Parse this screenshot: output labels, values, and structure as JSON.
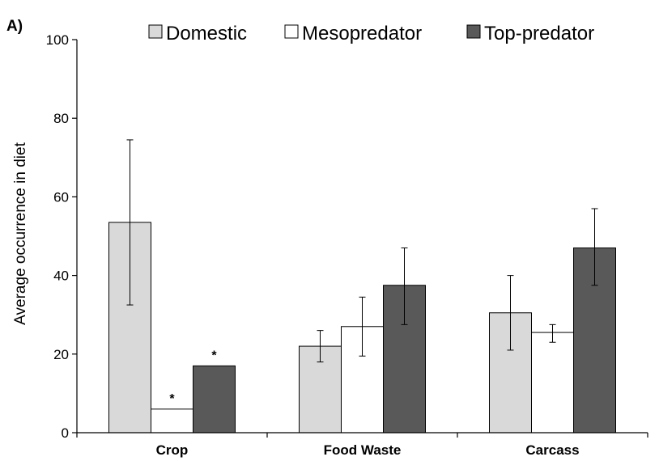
{
  "chart_data": {
    "type": "bar",
    "panel_label": "A)",
    "title": "",
    "xlabel": "",
    "ylabel": "Average occurrence in diet",
    "ylim": [
      0,
      100
    ],
    "yticks": [
      0,
      20,
      40,
      60,
      80,
      100
    ],
    "grid": false,
    "legend_position": "top",
    "categories": [
      "Crop",
      "Food Waste",
      "Carcass"
    ],
    "series": [
      {
        "name": "Domestic",
        "color": "#d9d9d9",
        "values": [
          53.5,
          22,
          30.5
        ],
        "error_low": [
          32.5,
          18,
          21
        ],
        "error_high": [
          74.5,
          26,
          40
        ],
        "annotations": [
          "",
          "",
          ""
        ]
      },
      {
        "name": "Mesopredator",
        "color": "#ffffff",
        "values": [
          6,
          27,
          25.5
        ],
        "error_low": [
          6,
          19.5,
          23
        ],
        "error_high": [
          6,
          34.5,
          27.5
        ],
        "annotations": [
          "*",
          "",
          ""
        ]
      },
      {
        "name": "Top-predator",
        "color": "#595959",
        "values": [
          17,
          37.5,
          47
        ],
        "error_low": [
          17,
          27.5,
          37.5
        ],
        "error_high": [
          17,
          47,
          57
        ],
        "annotations": [
          "*",
          "",
          ""
        ]
      }
    ]
  }
}
